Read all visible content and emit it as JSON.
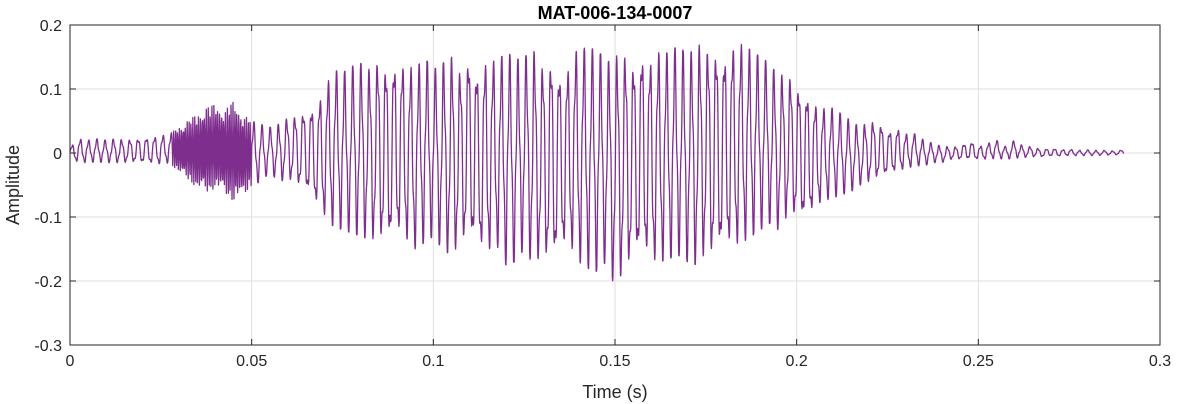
{
  "chart_data": {
    "type": "line",
    "title": "MAT-006-134-0007",
    "xlabel": "Time (s)",
    "ylabel": "Amplitude",
    "xlim": [
      0,
      0.3
    ],
    "ylim": [
      -0.3,
      0.2
    ],
    "xticks": [
      0,
      0.05,
      0.1,
      0.15,
      0.2,
      0.25,
      0.3
    ],
    "xtick_labels": [
      "0",
      "0.05",
      "0.1",
      "0.15",
      "0.2",
      "0.25",
      "0.3"
    ],
    "yticks": [
      -0.3,
      -0.2,
      -0.1,
      0,
      0.1,
      0.2
    ],
    "ytick_labels": [
      "-0.3",
      "-0.2",
      "-0.1",
      "0",
      "0.1",
      "0.2"
    ],
    "grid": true,
    "line_color": "#7E2F8E",
    "series": [
      {
        "name": "",
        "x": [
          0,
          0.0025,
          0.005,
          0.0075,
          0.01,
          0.0125,
          0.015,
          0.0175,
          0.02,
          0.0225,
          0.025,
          0.0275,
          0.03,
          0.0325,
          0.035,
          0.0375,
          0.04,
          0.0425,
          0.045,
          0.0475,
          0.05,
          0.0525,
          0.055,
          0.0575,
          0.06,
          0.0625,
          0.065,
          0.0675,
          0.07,
          0.0725,
          0.075,
          0.0775,
          0.08,
          0.0825,
          0.085,
          0.0875,
          0.09,
          0.0925,
          0.095,
          0.0975,
          0.1,
          0.1025,
          0.105,
          0.1075,
          0.11,
          0.1125,
          0.115,
          0.1175,
          0.12,
          0.1225,
          0.125,
          0.1275,
          0.13,
          0.1325,
          0.135,
          0.1375,
          0.14,
          0.1425,
          0.145,
          0.1475,
          0.15,
          0.1525,
          0.155,
          0.1575,
          0.16,
          0.1625,
          0.165,
          0.1675,
          0.17,
          0.1725,
          0.175,
          0.1775,
          0.18,
          0.1825,
          0.185,
          0.1875,
          0.19,
          0.1925,
          0.195,
          0.1975,
          0.2,
          0.2025,
          0.205,
          0.2075,
          0.21,
          0.2125,
          0.215,
          0.2175,
          0.22,
          0.2225,
          0.225,
          0.2275,
          0.23,
          0.2325,
          0.235,
          0.2375,
          0.24,
          0.2425,
          0.245,
          0.2475,
          0.25,
          0.2525,
          0.255,
          0.2575,
          0.26,
          0.2625,
          0.265,
          0.2675,
          0.27,
          0.2725,
          0.275,
          0.2775,
          0.28,
          0.2825,
          0.285,
          0.2875,
          0.29
        ],
        "upper": [
          0.01,
          0.022,
          0.02,
          0.022,
          0.02,
          0.022,
          0.02,
          0.022,
          0.024,
          0.025,
          0.027,
          0.03,
          0.04,
          0.05,
          0.06,
          0.07,
          0.075,
          0.065,
          0.08,
          0.06,
          0.05,
          0.045,
          0.04,
          0.045,
          0.055,
          0.06,
          0.07,
          0.075,
          0.1,
          0.13,
          0.125,
          0.135,
          0.14,
          0.13,
          0.15,
          0.14,
          0.15,
          0.14,
          0.13,
          0.15,
          0.13,
          0.14,
          0.15,
          0.13,
          0.16,
          0.13,
          0.155,
          0.14,
          0.16,
          0.145,
          0.15,
          0.16,
          0.14,
          0.155,
          0.13,
          0.14,
          0.17,
          0.16,
          0.165,
          0.14,
          0.15,
          0.16,
          0.15,
          0.165,
          0.15,
          0.16,
          0.155,
          0.17,
          0.15,
          0.17,
          0.165,
          0.17,
          0.16,
          0.175,
          0.17,
          0.16,
          0.15,
          0.14,
          0.12,
          0.125,
          0.11,
          0.1,
          0.08,
          0.07,
          0.07,
          0.06,
          0.05,
          0.04,
          0.05,
          0.05,
          0.035,
          0.04,
          0.03,
          0.03,
          0.02,
          0.015,
          0.01,
          0.01,
          0.01,
          0.02,
          0.01,
          0.015,
          0.02,
          0.01,
          0.02,
          0.01,
          0.01,
          0.005,
          0.008,
          0.005,
          0.006,
          0.004,
          0.005,
          0.004,
          0.004,
          0.003,
          0.005
        ],
        "lower": [
          -0.01,
          -0.015,
          -0.015,
          -0.014,
          -0.015,
          -0.015,
          -0.015,
          -0.015,
          -0.016,
          -0.017,
          -0.018,
          -0.015,
          -0.03,
          -0.04,
          -0.055,
          -0.06,
          -0.055,
          -0.06,
          -0.075,
          -0.065,
          -0.05,
          -0.045,
          -0.03,
          -0.045,
          -0.04,
          -0.05,
          -0.06,
          -0.08,
          -0.1,
          -0.115,
          -0.12,
          -0.125,
          -0.13,
          -0.135,
          -0.14,
          -0.145,
          -0.13,
          -0.14,
          -0.15,
          -0.14,
          -0.13,
          -0.15,
          -0.16,
          -0.145,
          -0.14,
          -0.155,
          -0.16,
          -0.145,
          -0.175,
          -0.17,
          -0.15,
          -0.175,
          -0.165,
          -0.18,
          -0.155,
          -0.15,
          -0.17,
          -0.18,
          -0.185,
          -0.17,
          -0.21,
          -0.19,
          -0.175,
          -0.16,
          -0.175,
          -0.17,
          -0.165,
          -0.16,
          -0.17,
          -0.175,
          -0.16,
          -0.17,
          -0.15,
          -0.155,
          -0.14,
          -0.13,
          -0.12,
          -0.11,
          -0.12,
          -0.1,
          -0.105,
          -0.11,
          -0.09,
          -0.075,
          -0.07,
          -0.065,
          -0.06,
          -0.05,
          -0.045,
          -0.04,
          -0.035,
          -0.03,
          -0.025,
          -0.02,
          -0.02,
          -0.015,
          -0.015,
          -0.01,
          -0.01,
          -0.01,
          -0.01,
          -0.01,
          -0.008,
          -0.01,
          -0.008,
          -0.007,
          -0.006,
          -0.006,
          -0.005,
          -0.005,
          -0.004,
          -0.004,
          -0.004,
          -0.004,
          -0.003,
          -0.003,
          -0.002
        ]
      }
    ]
  }
}
